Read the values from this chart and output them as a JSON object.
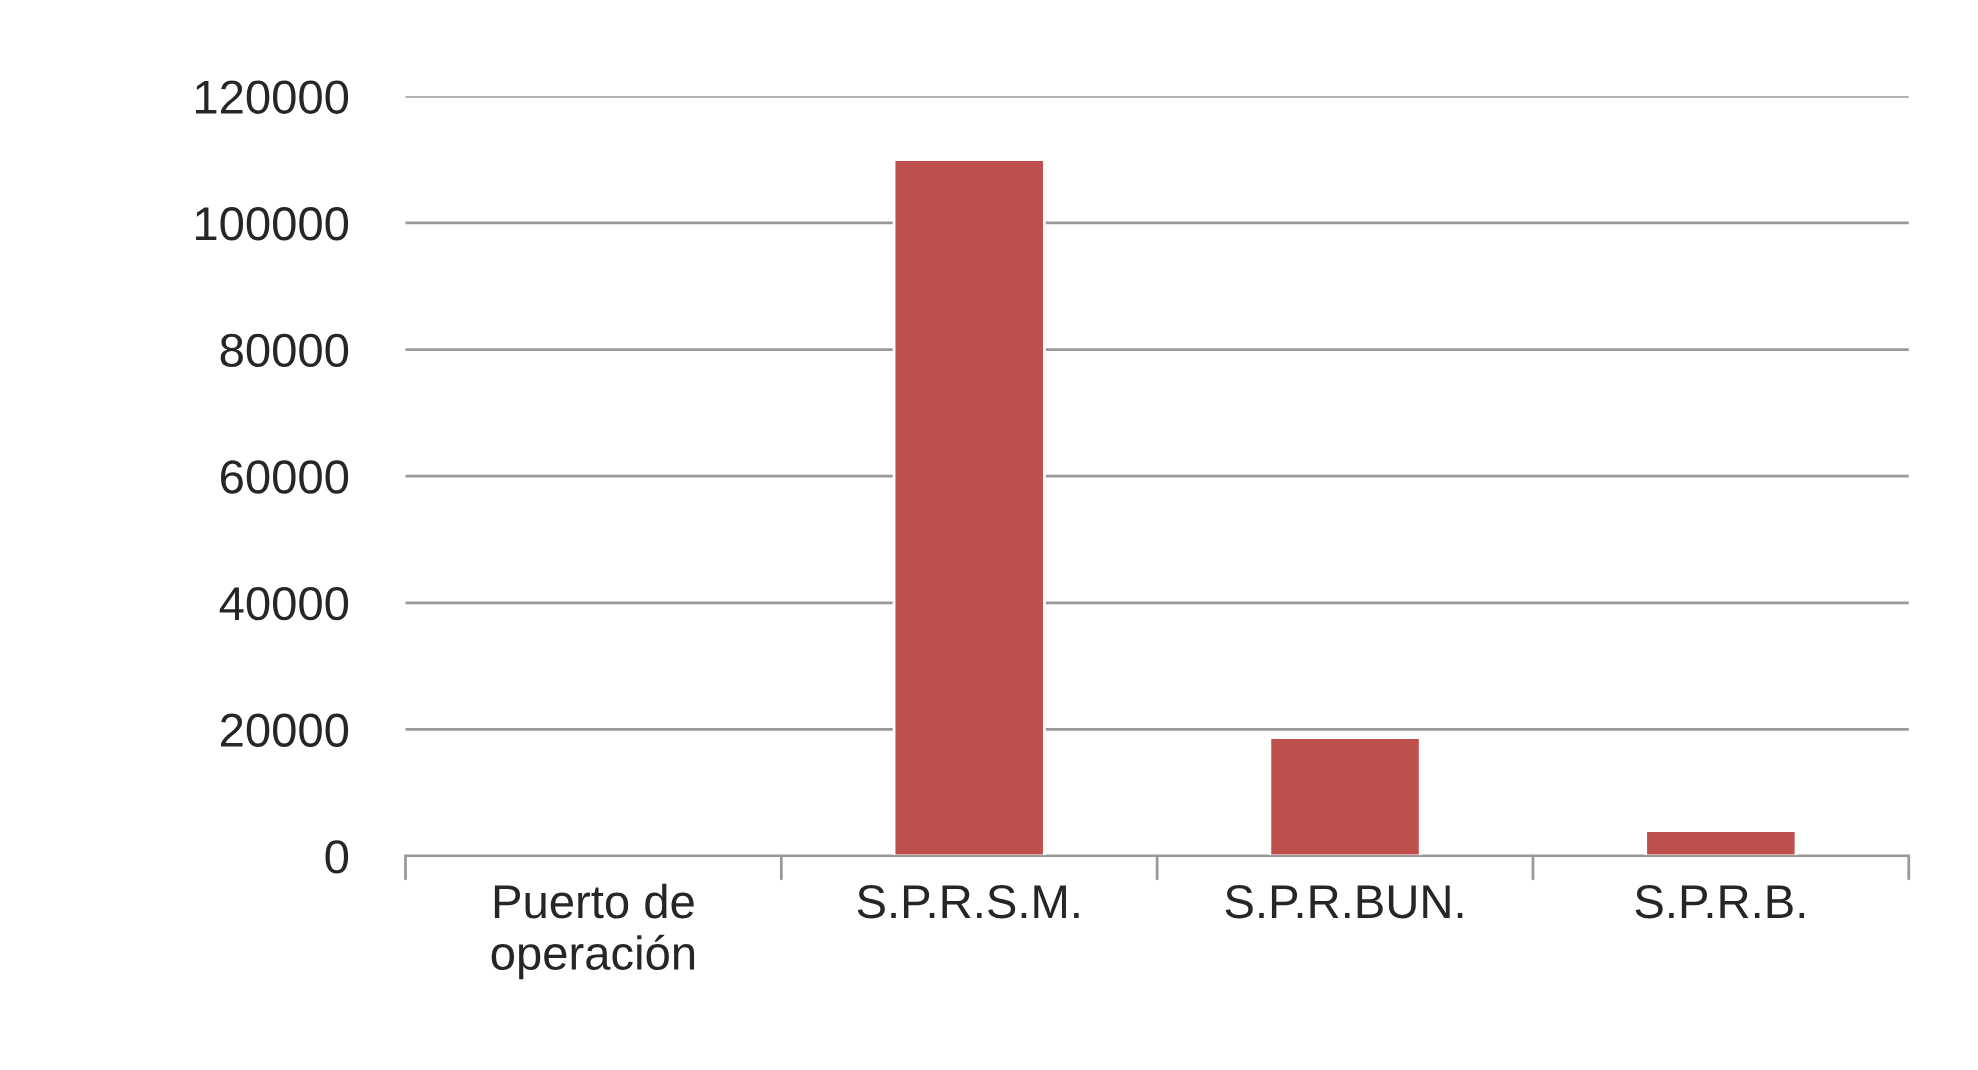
{
  "chart_data": {
    "type": "bar",
    "categories": [
      "Puerto de\noperación",
      "S.P.R.S.M.",
      "S.P.R.BUN.",
      "S.P.R.B."
    ],
    "values": [
      null,
      110000,
      18700,
      4000
    ],
    "color": "#c0504d",
    "ylim": [
      0,
      120000
    ],
    "yticks": [
      0,
      20000,
      40000,
      60000,
      80000,
      100000,
      120000
    ],
    "grid": "y"
  }
}
